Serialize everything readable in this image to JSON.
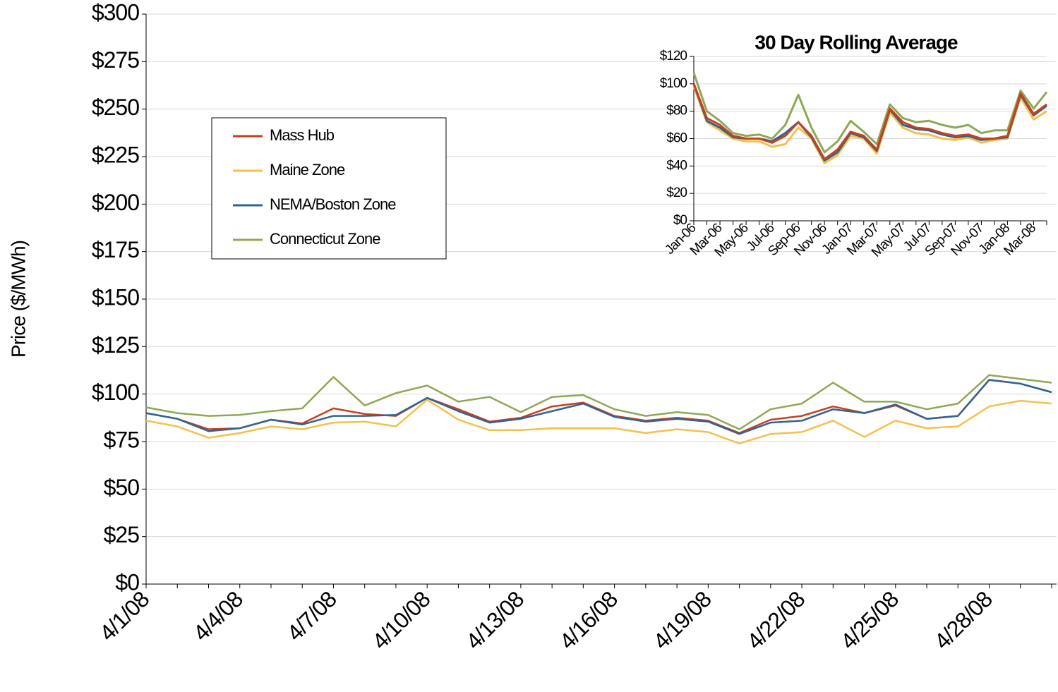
{
  "chart_data": [
    {
      "type": "line",
      "y_label": "Price ($/MWh)",
      "categories": [
        "4/1/08",
        null,
        null,
        "4/4/08",
        null,
        null,
        "4/7/08",
        null,
        null,
        "4/10/08",
        null,
        null,
        "4/13/08",
        null,
        null,
        "4/16/08",
        null,
        null,
        "4/19/08",
        null,
        null,
        "4/22/08",
        null,
        null,
        "4/25/08",
        null,
        null,
        "4/28/08",
        null,
        null
      ],
      "series": [
        {
          "name": "Mass Hub",
          "color": "#c8401c",
          "values": [
            90,
            87,
            81.5,
            82,
            86.5,
            84.5,
            92.5,
            89.5,
            88.5,
            98,
            92,
            85.5,
            87.5,
            93.5,
            95.5,
            88.5,
            86,
            87.5,
            86,
            79.5,
            86.5,
            88.5,
            93.5,
            90,
            94,
            87,
            88.5,
            107.5,
            105.5,
            101
          ]
        },
        {
          "name": "Maine Zone",
          "color": "#f5c04a",
          "values": [
            86,
            83,
            77,
            79.5,
            83,
            81.5,
            85,
            85.5,
            83,
            97,
            86.5,
            81,
            81,
            82,
            82,
            82,
            79.5,
            81.5,
            80,
            74,
            79,
            80,
            86,
            77.5,
            86,
            82,
            83,
            93.5,
            96.5,
            95
          ]
        },
        {
          "name": "NEMA/Boston Zone",
          "color": "#2e6496",
          "values": [
            90,
            87,
            80.5,
            82,
            86.5,
            84,
            88.5,
            88.5,
            89,
            98,
            91,
            85,
            87,
            91,
            95,
            88,
            85.5,
            87,
            85.5,
            79,
            85,
            86,
            92,
            90,
            94.5,
            87,
            88.5,
            107.5,
            105.5,
            101
          ]
        },
        {
          "name": "Connecticut Zone",
          "color": "#8fa855",
          "values": [
            93,
            90,
            88.5,
            89,
            91,
            92.5,
            109,
            94,
            100.5,
            104.5,
            96,
            98.5,
            90.5,
            98.5,
            99.5,
            92,
            88.5,
            90.5,
            89,
            81.5,
            92,
            95,
            106,
            96,
            96,
            92,
            95,
            110,
            108,
            106
          ]
        }
      ],
      "ylim": [
        0,
        300
      ],
      "yticks": [
        {
          "value": 0,
          "label": "$0"
        },
        {
          "value": 25,
          "label": "$25"
        },
        {
          "value": 50,
          "label": "$50"
        },
        {
          "value": 75,
          "label": "$75"
        },
        {
          "value": 100,
          "label": "$100"
        },
        {
          "value": 125,
          "label": "$125"
        },
        {
          "value": 150,
          "label": "$150"
        },
        {
          "value": 175,
          "label": "$175"
        },
        {
          "value": 200,
          "label": "$200"
        },
        {
          "value": 225,
          "label": "$225"
        },
        {
          "value": 250,
          "label": "$250"
        },
        {
          "value": 275,
          "label": "$275"
        },
        {
          "value": 300,
          "label": "$300"
        }
      ],
      "grid": true,
      "legend": "upper left"
    },
    {
      "type": "line",
      "title": "30 Day Rolling Average",
      "categories": [
        "Jan-06",
        null,
        "Mar-06",
        null,
        "May-06",
        null,
        "Jul-06",
        null,
        "Sep-06",
        null,
        "Nov-06",
        null,
        "Jan-07",
        null,
        "Mar-07",
        null,
        "May-07",
        null,
        "Jul-07",
        null,
        "Sep-07",
        null,
        "Nov-07",
        null,
        "Jan-08",
        null,
        "Mar-08",
        null
      ],
      "series": [
        {
          "color": "#f5c04a",
          "values": [
            98,
            72,
            66,
            60,
            58,
            58,
            54,
            56,
            68,
            60,
            42,
            48,
            62,
            60,
            49,
            79,
            68,
            64,
            63,
            60,
            59,
            61,
            57,
            59,
            60,
            90,
            74,
            80
          ]
        },
        {
          "color": "#8fa855",
          "values": [
            108,
            80,
            73,
            64,
            62,
            63,
            60,
            70,
            92,
            68,
            50,
            58,
            73,
            65,
            56,
            85,
            75,
            72,
            73,
            70,
            68,
            70,
            64,
            66,
            66,
            95,
            82,
            94
          ]
        },
        {
          "color": "#2e6496",
          "values": [
            100,
            73,
            68,
            61,
            60,
            60,
            58,
            64,
            72,
            61,
            44,
            50,
            64,
            61,
            51,
            81,
            70,
            67,
            66,
            63,
            61,
            62,
            59,
            60,
            61,
            92,
            77,
            84
          ]
        },
        {
          "color": "#c8401c",
          "values": [
            100,
            75,
            70,
            62,
            60,
            60,
            57,
            62,
            72,
            62,
            45,
            52,
            65,
            62,
            52,
            82,
            72,
            68,
            67,
            64,
            62,
            63,
            60,
            60,
            62,
            93,
            78,
            85
          ]
        }
      ],
      "ylim": [
        0,
        120
      ],
      "yticks": [
        {
          "value": 0,
          "label": "$0"
        },
        {
          "value": 20,
          "label": "$20"
        },
        {
          "value": 40,
          "label": "$40"
        },
        {
          "value": 60,
          "label": "$60"
        },
        {
          "value": 80,
          "label": "$80"
        },
        {
          "value": 100,
          "label": "$100"
        },
        {
          "value": 120,
          "label": "$120"
        }
      ],
      "grid": true
    }
  ]
}
